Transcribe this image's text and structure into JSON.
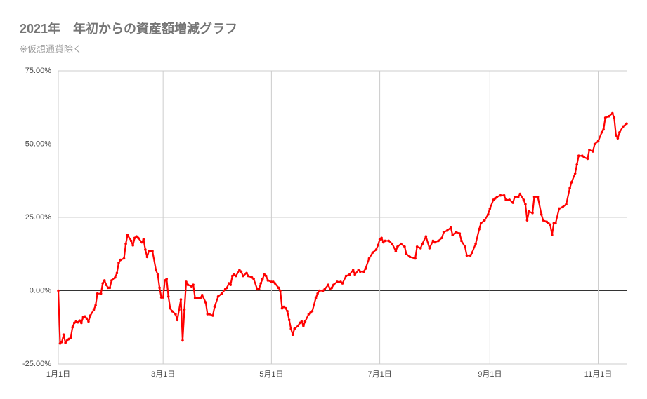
{
  "chart_data": {
    "type": "line",
    "title": "2021年　年初からの資産額増減グラフ",
    "subtitle": "※仮想通貨除く",
    "color": "#ff0000",
    "grid": true,
    "xlim": [
      0,
      320
    ],
    "xticks": [
      {
        "value": 0,
        "label": "1月1日"
      },
      {
        "value": 59,
        "label": "3月1日"
      },
      {
        "value": 120,
        "label": "5月1日"
      },
      {
        "value": 181,
        "label": "7月1日"
      },
      {
        "value": 243,
        "label": "9月1日"
      },
      {
        "value": 304,
        "label": "11月1日"
      }
    ],
    "ylim": [
      -25,
      75
    ],
    "yticks": [
      {
        "value": -25,
        "label": "-25.00%"
      },
      {
        "value": 0,
        "label": "0.00%"
      },
      {
        "value": 25,
        "label": "25.00%"
      },
      {
        "value": 50,
        "label": "50.00%"
      },
      {
        "value": 75,
        "label": "75.00%"
      }
    ],
    "x": [
      0,
      1,
      2,
      3,
      4,
      5,
      6,
      7,
      8,
      9,
      10,
      11,
      12,
      13,
      14,
      15,
      16,
      17,
      18,
      20,
      21,
      22,
      24,
      25,
      26,
      27,
      28,
      29,
      30,
      32,
      33,
      34,
      35,
      37,
      38,
      39,
      41,
      42,
      43,
      44,
      45,
      47,
      48,
      49,
      50,
      51,
      52,
      53,
      55,
      56,
      57,
      58,
      59,
      60,
      61,
      62,
      63,
      64,
      66,
      67,
      68,
      69,
      70,
      71,
      72,
      73,
      75,
      76,
      77,
      78,
      80,
      81,
      83,
      84,
      85,
      87,
      88,
      90,
      92,
      94,
      95,
      96,
      97,
      98,
      99,
      100,
      102,
      103,
      104,
      106,
      107,
      109,
      110,
      112,
      113,
      114,
      115,
      116,
      117,
      118,
      120,
      121,
      122,
      124,
      125,
      126,
      127,
      128,
      129,
      130,
      131,
      132,
      133,
      135,
      136,
      137,
      138,
      139,
      141,
      142,
      143,
      145,
      146,
      147,
      149,
      150,
      152,
      153,
      154,
      155,
      157,
      159,
      160,
      162,
      164,
      166,
      167,
      169,
      170,
      172,
      173,
      175,
      177,
      179,
      180,
      181,
      182,
      183,
      184,
      186,
      188,
      190,
      191,
      193,
      195,
      196,
      198,
      201,
      202,
      204,
      205,
      207,
      209,
      211,
      212,
      214,
      216,
      217,
      219,
      221,
      222,
      224,
      226,
      227,
      229,
      230,
      232,
      233,
      235,
      237,
      238,
      240,
      242,
      243,
      245,
      246,
      247,
      249,
      251,
      252,
      254,
      256,
      257,
      259,
      260,
      262,
      263,
      264,
      265,
      267,
      268,
      270,
      272,
      273,
      275,
      276,
      277,
      278,
      279,
      280,
      282,
      284,
      286,
      288,
      289,
      291,
      292,
      293,
      295,
      296,
      298,
      299,
      301,
      302,
      304,
      306,
      307,
      308,
      310,
      312,
      313,
      314,
      315,
      316,
      318,
      320
    ],
    "values": [
      0,
      -18,
      -17.5,
      -15,
      -17.8,
      -17,
      -16.5,
      -16,
      -12.5,
      -11,
      -10.5,
      -10.8,
      -10.2,
      -11,
      -9,
      -8.8,
      -9.5,
      -10.5,
      -8.5,
      -6.5,
      -5,
      -1,
      -1,
      2.5,
      3.5,
      2,
      1,
      1,
      3.5,
      4.5,
      6,
      9.5,
      10.5,
      11,
      16,
      19,
      17,
      15.5,
      18,
      18.5,
      18,
      16.5,
      17.5,
      14,
      11.5,
      13.5,
      13.5,
      13.5,
      7,
      5.5,
      1,
      -2.3,
      -2.3,
      3.5,
      4,
      -2,
      -6,
      -7,
      -8,
      -10,
      -6.5,
      -3,
      -17,
      -6.5,
      3,
      2,
      1.5,
      2,
      -2.5,
      -2.5,
      -2.5,
      -1.5,
      -4,
      -8,
      -8,
      -8.5,
      -5.5,
      -2,
      -1,
      0.5,
      1,
      2.5,
      2,
      5,
      5.5,
      5,
      7,
      6.5,
      5,
      6,
      5,
      4.5,
      4,
      0.5,
      0.5,
      2.5,
      4,
      5.5,
      5,
      3.5,
      3,
      3,
      2.5,
      1,
      0,
      -6,
      -5.5,
      -6,
      -7,
      -10,
      -13,
      -15,
      -13,
      -12,
      -11,
      -10.5,
      -12,
      -10.5,
      -8,
      -7.5,
      -7,
      -2.5,
      -1,
      0,
      0,
      0.5,
      2,
      0.5,
      1,
      2,
      3,
      3,
      2.5,
      5,
      5.5,
      7,
      5.5,
      7,
      6.5,
      6.5,
      7.5,
      11,
      13,
      14,
      15.5,
      17.5,
      18,
      16.5,
      17,
      17,
      16,
      13.5,
      15,
      16,
      15,
      12.5,
      11.5,
      11,
      15,
      14.5,
      16,
      18.5,
      14.5,
      17,
      16.5,
      17,
      18,
      20,
      20.5,
      21.5,
      19,
      20,
      19.5,
      17,
      15,
      12,
      12,
      13,
      16,
      21,
      23,
      24,
      26,
      28,
      31,
      31.5,
      32,
      32.5,
      32.5,
      31,
      31,
      30,
      32,
      32,
      33,
      31,
      29.5,
      24,
      27,
      26.5,
      32,
      32,
      26,
      24,
      23.5,
      23,
      22.5,
      19,
      23,
      23,
      28,
      28.5,
      29.5,
      35,
      37,
      40,
      43,
      46,
      46,
      45.5,
      45,
      48,
      47.5,
      50,
      51,
      54,
      55,
      59,
      59.5,
      60.5,
      59,
      53,
      52,
      54,
      56,
      57
    ]
  }
}
